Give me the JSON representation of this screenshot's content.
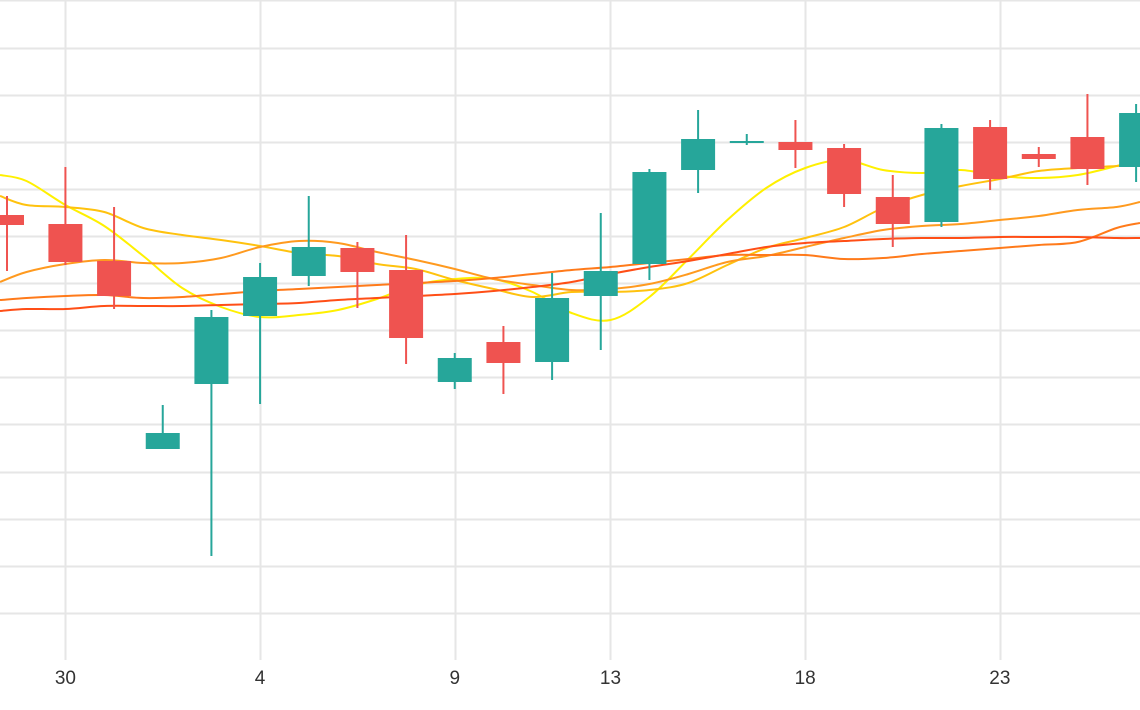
{
  "chart_data": {
    "type": "candlestick",
    "title": "",
    "xlabel": "",
    "ylabel": "",
    "x_tick_labels": [
      {
        "day": 0,
        "label": "30"
      },
      {
        "day": 5,
        "label": "4"
      },
      {
        "day": 10,
        "label": "9"
      },
      {
        "day": 14,
        "label": "13"
      },
      {
        "day": 19,
        "label": "18"
      },
      {
        "day": 24,
        "label": "23"
      }
    ],
    "x_range": [
      -1.68,
      27.6
    ],
    "y_range": [
      0,
      660
    ],
    "y_gridlines": [
      660,
      612,
      565,
      518,
      471,
      424,
      377,
      330,
      283,
      236,
      188,
      141,
      94,
      47
    ],
    "grid": true,
    "up_color": "#26a69a",
    "down_color": "#ef5350",
    "candles": [
      {
        "day": -1.5,
        "open": 445,
        "close": 435,
        "high": 464,
        "low": 389
      },
      {
        "day": 0,
        "open": 436,
        "close": 398,
        "high": 493,
        "low": 395
      },
      {
        "day": 1.25,
        "open": 399,
        "close": 364,
        "high": 453,
        "low": 351
      },
      {
        "day": 2.5,
        "open": 211,
        "close": 227,
        "high": 255,
        "low": 211
      },
      {
        "day": 3.75,
        "open": 276,
        "close": 343,
        "high": 350,
        "low": 104
      },
      {
        "day": 5,
        "open": 344,
        "close": 383,
        "high": 397,
        "low": 256
      },
      {
        "day": 6.25,
        "open": 384,
        "close": 413,
        "high": 464,
        "low": 374
      },
      {
        "day": 7.5,
        "open": 412,
        "close": 388,
        "high": 418,
        "low": 352
      },
      {
        "day": 8.75,
        "open": 390,
        "close": 322,
        "high": 425,
        "low": 296
      },
      {
        "day": 10,
        "open": 278,
        "close": 302,
        "high": 307,
        "low": 271
      },
      {
        "day": 11.25,
        "open": 318,
        "close": 297,
        "high": 334,
        "low": 266
      },
      {
        "day": 12.5,
        "open": 298,
        "close": 362,
        "high": 387,
        "low": 280
      },
      {
        "day": 13.75,
        "open": 364,
        "close": 389,
        "high": 447,
        "low": 310
      },
      {
        "day": 15,
        "open": 396,
        "close": 488,
        "high": 491,
        "low": 380
      },
      {
        "day": 16.25,
        "open": 490,
        "close": 521,
        "high": 550,
        "low": 467
      },
      {
        "day": 17.5,
        "open": 518,
        "close": 519,
        "high": 526,
        "low": 515
      },
      {
        "day": 18.75,
        "open": 518,
        "close": 510,
        "high": 540,
        "low": 492
      },
      {
        "day": 20,
        "open": 512,
        "close": 466,
        "high": 516,
        "low": 453
      },
      {
        "day": 21.25,
        "open": 463,
        "close": 436,
        "high": 485,
        "low": 413
      },
      {
        "day": 22.5,
        "open": 438,
        "close": 532,
        "high": 536,
        "low": 433
      },
      {
        "day": 23.75,
        "open": 533,
        "close": 481,
        "high": 540,
        "low": 470
      },
      {
        "day": 25,
        "open": 506,
        "close": 501,
        "high": 513,
        "low": 493
      },
      {
        "day": 26.25,
        "open": 523,
        "close": 491,
        "high": 566,
        "low": 475
      },
      {
        "day": 27.5,
        "open": 493,
        "close": 547,
        "high": 556,
        "low": 478
      }
    ],
    "moving_averages": [
      {
        "color": "#fff000",
        "width": 2,
        "points": [
          [
            -1.68,
            485
          ],
          [
            -1,
            479
          ],
          [
            0,
            455
          ],
          [
            1,
            434
          ],
          [
            2,
            404
          ],
          [
            3,
            372
          ],
          [
            4,
            353
          ],
          [
            5,
            343
          ],
          [
            6,
            345
          ],
          [
            7,
            350
          ],
          [
            8,
            361
          ],
          [
            9,
            375
          ],
          [
            10,
            381
          ],
          [
            11,
            381
          ],
          [
            12,
            368
          ],
          [
            13,
            347
          ],
          [
            14,
            340
          ],
          [
            15,
            363
          ],
          [
            16,
            401
          ],
          [
            17,
            440
          ],
          [
            18,
            472
          ],
          [
            19,
            492
          ],
          [
            20,
            500
          ],
          [
            21,
            490
          ],
          [
            22,
            487
          ],
          [
            23,
            490
          ],
          [
            24,
            484
          ],
          [
            25,
            482
          ],
          [
            26,
            485
          ],
          [
            27,
            494
          ],
          [
            27.6,
            500
          ]
        ]
      },
      {
        "color": "#ffc20e",
        "width": 2,
        "points": [
          [
            -1.68,
            464
          ],
          [
            -1,
            455
          ],
          [
            0,
            453
          ],
          [
            1,
            448
          ],
          [
            2,
            432
          ],
          [
            3,
            425
          ],
          [
            4,
            420
          ],
          [
            5,
            414
          ],
          [
            6,
            407
          ],
          [
            7,
            404
          ],
          [
            8,
            396
          ],
          [
            9,
            391
          ],
          [
            10,
            380
          ],
          [
            11,
            371
          ],
          [
            12,
            363
          ],
          [
            13,
            368
          ],
          [
            14,
            368
          ],
          [
            15,
            370
          ],
          [
            16,
            377
          ],
          [
            17,
            395
          ],
          [
            18,
            412
          ],
          [
            19,
            422
          ],
          [
            20,
            433
          ],
          [
            21,
            452
          ],
          [
            22,
            465
          ],
          [
            23,
            474
          ],
          [
            24,
            481
          ],
          [
            25,
            489
          ],
          [
            26,
            492
          ],
          [
            27,
            494
          ],
          [
            27.6,
            496
          ]
        ]
      },
      {
        "color": "#ff9a1f",
        "width": 2,
        "points": [
          [
            -1.68,
            378
          ],
          [
            -1,
            388
          ],
          [
            0,
            396
          ],
          [
            1,
            400
          ],
          [
            2,
            397
          ],
          [
            3,
            397
          ],
          [
            4,
            402
          ],
          [
            5,
            413
          ],
          [
            6,
            419
          ],
          [
            7,
            417
          ],
          [
            8,
            408
          ],
          [
            9,
            400
          ],
          [
            10,
            391
          ],
          [
            11,
            381
          ],
          [
            12,
            375
          ],
          [
            13,
            370
          ],
          [
            14,
            371
          ],
          [
            15,
            376
          ],
          [
            16,
            386
          ],
          [
            17,
            398
          ],
          [
            18,
            404
          ],
          [
            19,
            413
          ],
          [
            20,
            422
          ],
          [
            21,
            430
          ],
          [
            22,
            434
          ],
          [
            23,
            436
          ],
          [
            24,
            440
          ],
          [
            25,
            444
          ],
          [
            26,
            450
          ],
          [
            27,
            453
          ],
          [
            27.6,
            458
          ]
        ]
      },
      {
        "color": "#ff7a1a",
        "width": 2,
        "points": [
          [
            -1.68,
            360
          ],
          [
            -1,
            362
          ],
          [
            0,
            364
          ],
          [
            1,
            365
          ],
          [
            2,
            362
          ],
          [
            3,
            363
          ],
          [
            4,
            366
          ],
          [
            5,
            369
          ],
          [
            6,
            371
          ],
          [
            7,
            373
          ],
          [
            8,
            375
          ],
          [
            9,
            377
          ],
          [
            10,
            379
          ],
          [
            11,
            382
          ],
          [
            12,
            386
          ],
          [
            13,
            390
          ],
          [
            14,
            393
          ],
          [
            15,
            397
          ],
          [
            16,
            401
          ],
          [
            17,
            405
          ],
          [
            18,
            405
          ],
          [
            19,
            405
          ],
          [
            20,
            401
          ],
          [
            21,
            402
          ],
          [
            22,
            406
          ],
          [
            23,
            409
          ],
          [
            24,
            412
          ],
          [
            25,
            415
          ],
          [
            26,
            418
          ],
          [
            27,
            432
          ],
          [
            27.6,
            437
          ]
        ]
      },
      {
        "color": "#ff4e16",
        "width": 2,
        "points": [
          [
            -1.68,
            349
          ],
          [
            -1,
            351
          ],
          [
            0,
            351
          ],
          [
            1,
            354
          ],
          [
            2,
            354
          ],
          [
            3,
            354
          ],
          [
            4,
            355
          ],
          [
            5,
            356
          ],
          [
            6,
            357
          ],
          [
            7,
            360
          ],
          [
            8,
            362
          ],
          [
            9,
            364
          ],
          [
            10,
            366
          ],
          [
            11,
            369
          ],
          [
            12,
            373
          ],
          [
            13,
            378
          ],
          [
            14,
            386
          ],
          [
            15,
            393
          ],
          [
            16,
            399
          ],
          [
            17,
            406
          ],
          [
            18,
            413
          ],
          [
            19,
            417
          ],
          [
            20,
            419
          ],
          [
            21,
            421
          ],
          [
            22,
            422
          ],
          [
            23,
            422
          ],
          [
            24,
            423
          ],
          [
            25,
            423
          ],
          [
            26,
            423
          ],
          [
            27,
            422
          ],
          [
            27.6,
            422
          ]
        ]
      }
    ]
  }
}
